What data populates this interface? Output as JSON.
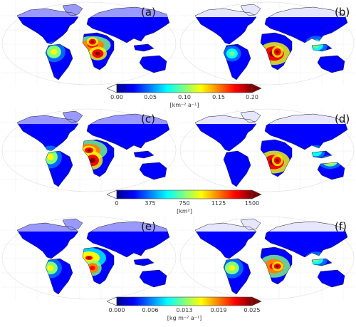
{
  "panels": [
    {
      "label": "(a)"
    },
    {
      "label": "(b)"
    },
    {
      "label": "(c)"
    },
    {
      "label": "(d)"
    },
    {
      "label": "(e)"
    },
    {
      "label": "(f)"
    }
  ],
  "colorbars": [
    {
      "ticks": [
        "0.00",
        "0.05",
        "0.10",
        "0.15",
        "0.20"
      ],
      "unit": "[km⁻² a⁻¹]"
    },
    {
      "ticks": [
        "0",
        "375",
        "750",
        "1125",
        "1500"
      ],
      "unit": "[km²]"
    },
    {
      "ticks": [
        "0.000",
        "0.006",
        "0.013",
        "0.019",
        "0.025"
      ],
      "unit": "[kg m⁻² a⁻¹]"
    }
  ],
  "colormap": [
    "#00008f",
    "#0000ff",
    "#0080ff",
    "#00ffff",
    "#80ff80",
    "#ffff00",
    "#ff8000",
    "#ff0000",
    "#800000"
  ]
}
